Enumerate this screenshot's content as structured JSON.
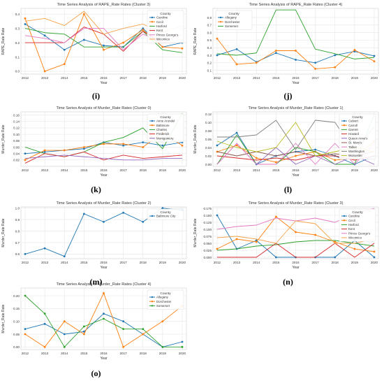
{
  "colors": {
    "grid": "#e6e6e6",
    "frame": "#cfcfcf",
    "text": "#333333",
    "palette": [
      "#1f77b4",
      "#ff7f0e",
      "#2ca02c",
      "#d62728",
      "#9467bd",
      "#8c564b",
      "#e377c2",
      "#7f7f7f",
      "#bcbd22",
      "#17becf"
    ]
  },
  "chart_data": [
    {
      "panel_id": "i",
      "panel_label": "(i)",
      "type": "line",
      "title": "Time Series Analysis of RAPE_Rate Rates (Cluster 3)",
      "xlabel": "Year",
      "ylabel": "RAPE_Rate Rate",
      "x": [
        2012,
        2013,
        2014,
        2015,
        2016,
        2017,
        2018,
        2019,
        2020
      ],
      "ylim": [
        -0.02,
        0.44
      ],
      "yticks": [
        0.0,
        0.1,
        0.2,
        0.3,
        0.4
      ],
      "ytick_labels": [
        "0.0",
        "0.1",
        "0.2",
        "0.3",
        "0.4"
      ],
      "legend_title": "County",
      "legend_position": "top-right",
      "series": [
        {
          "name": "Caroline",
          "color": "#1f77b4",
          "marker": true,
          "values": [
            0.33,
            0.25,
            0.15,
            0.22,
            0.18,
            0.17,
            0.3,
            0.17,
            0.2
          ]
        },
        {
          "name": "Cecil",
          "color": "#ff7f0e",
          "marker": true,
          "values": [
            0.37,
            0.0,
            0.05,
            0.4,
            0.15,
            0.2,
            0.29,
            0.17,
            0.16
          ]
        },
        {
          "name": "Harford",
          "color": "#2ca02c",
          "marker": false,
          "values": [
            0.3,
            0.27,
            0.26,
            0.17,
            0.17,
            0.17,
            0.28,
            0.15,
            0.13
          ]
        },
        {
          "name": "Kent",
          "color": "#d62728",
          "marker": false,
          "values": [
            0.2,
            0.2,
            0.2,
            0.31,
            0.26,
            0.14,
            0.28,
            0.2,
            0.2
          ]
        },
        {
          "name": "Prince George's",
          "color": "#e377c2",
          "marker": false,
          "values": [
            0.25,
            0.23,
            0.2,
            0.3,
            0.3,
            0.15,
            0.26,
            0.2,
            0.26
          ]
        },
        {
          "name": "Wicomico",
          "color": "#f5a34b",
          "marker": false,
          "values": [
            0.35,
            0.37,
            0.32,
            0.42,
            0.26,
            0.3,
            0.33,
            0.27,
            0.32
          ]
        }
      ]
    },
    {
      "panel_id": "j",
      "panel_label": "(j)",
      "type": "line",
      "title": "Time Series Analysis of RAPE_Rate Rates (Cluster 4)",
      "xlabel": "Year",
      "ylabel": "RAPE_Rate Rate",
      "x": [
        2012,
        2013,
        2014,
        2015,
        2016,
        2017,
        2018,
        2019,
        2020
      ],
      "ylim": [
        0.05,
        0.92
      ],
      "yticks": [
        0.1,
        0.2,
        0.3,
        0.4,
        0.5,
        0.6,
        0.7,
        0.8
      ],
      "ytick_labels": [
        "0.1",
        "0.2",
        "0.3",
        "0.4",
        "0.5",
        "0.6",
        "0.7",
        "0.8"
      ],
      "legend_title": "County",
      "legend_position": "top-left",
      "series": [
        {
          "name": "Allegany",
          "color": "#1f77b4",
          "marker": true,
          "values": [
            0.3,
            0.38,
            0.21,
            0.33,
            0.24,
            0.2,
            0.3,
            0.35,
            0.29
          ]
        },
        {
          "name": "Dorchester",
          "color": "#ff7f0e",
          "marker": true,
          "values": [
            0.52,
            0.18,
            0.2,
            0.36,
            0.36,
            0.12,
            0.14,
            0.37,
            0.22
          ]
        },
        {
          "name": "Somerset",
          "color": "#2ca02c",
          "marker": false,
          "values": [
            0.32,
            0.3,
            0.33,
            0.9,
            0.9,
            0.38,
            0.32,
            0.25,
            0.27
          ]
        }
      ]
    },
    {
      "panel_id": "k",
      "panel_label": "(k)",
      "type": "line",
      "title": "Time Series Analysis of Murder_Rate Rates (Cluster 0)",
      "xlabel": "Year",
      "ylabel": "Murder_Rate Rate",
      "x": [
        2012,
        2013,
        2014,
        2015,
        2016,
        2017,
        2018,
        2019,
        2020
      ],
      "ylim": [
        0.0,
        0.17
      ],
      "yticks": [
        0.02,
        0.04,
        0.06,
        0.08,
        0.1,
        0.12,
        0.14,
        0.16
      ],
      "ytick_labels": [
        "0.02",
        "0.04",
        "0.06",
        "0.08",
        "0.10",
        "0.12",
        "0.14",
        "0.16"
      ],
      "legend_title": "County",
      "legend_position": "top-right",
      "series": [
        {
          "name": "Anne Arundel",
          "color": "#1f77b4",
          "marker": true,
          "values": [
            0.04,
            0.045,
            0.05,
            0.055,
            0.075,
            0.065,
            0.075,
            0.065,
            0.075
          ]
        },
        {
          "name": "Baltimore",
          "color": "#ff7f0e",
          "marker": true,
          "values": [
            0.02,
            0.05,
            0.05,
            0.06,
            0.07,
            0.07,
            0.06,
            0.105,
            0.065
          ]
        },
        {
          "name": "Charles",
          "color": "#2ca02c",
          "marker": false,
          "values": [
            0.06,
            0.04,
            0.03,
            0.045,
            0.075,
            0.09,
            0.12,
            0.055,
            0.165
          ]
        },
        {
          "name": "Frederick",
          "color": "#d62728",
          "marker": false,
          "values": [
            0.01,
            0.04,
            0.03,
            0.045,
            0.02,
            0.035,
            0.025,
            0.03,
            0.035
          ]
        },
        {
          "name": "Montgomery",
          "color": "#9467bd",
          "marker": false,
          "values": [
            0.025,
            0.03,
            0.035,
            0.03,
            0.025,
            0.02,
            0.02,
            0.025,
            0.025
          ]
        }
      ]
    },
    {
      "panel_id": "l",
      "panel_label": "(l)",
      "type": "line",
      "title": "Time Series Analysis of Murder_Rate Rates (Cluster 1)",
      "xlabel": "Year",
      "ylabel": "Murder_Rate Rate",
      "x": [
        2012,
        2013,
        2014,
        2015,
        2016,
        2017,
        2018,
        2019,
        2020
      ],
      "ylim": [
        -0.005,
        0.125
      ],
      "yticks": [
        0.0,
        0.02,
        0.04,
        0.06,
        0.08,
        0.1,
        0.12
      ],
      "ytick_labels": [
        "0.00",
        "0.02",
        "0.04",
        "0.06",
        "0.08",
        "0.10",
        "0.12"
      ],
      "legend_title": "County",
      "legend_position": "top-right",
      "series": [
        {
          "name": "Calvert",
          "color": "#1f77b4",
          "marker": true,
          "values": [
            0.045,
            0.075,
            0.0,
            0.02,
            0.03,
            0.035,
            0.02,
            0.0,
            0.02
          ]
        },
        {
          "name": "Carroll",
          "color": "#ff7f0e",
          "marker": true,
          "values": [
            0.03,
            0.045,
            0.015,
            0.005,
            0.02,
            0.03,
            0.01,
            0.015,
            0.055
          ]
        },
        {
          "name": "Garrett",
          "color": "#2ca02c",
          "marker": false,
          "values": [
            0.0,
            0.07,
            0.0,
            0.0,
            0.04,
            0.03,
            0.0,
            0.0,
            0.12
          ]
        },
        {
          "name": "Howard",
          "color": "#d62728",
          "marker": false,
          "values": [
            0.02,
            0.015,
            0.01,
            0.015,
            0.01,
            0.02,
            0.02,
            0.01,
            0.02
          ]
        },
        {
          "name": "Queen Anne's",
          "color": "#9467bd",
          "marker": false,
          "values": [
            0.0,
            0.05,
            0.0,
            0.04,
            0.0,
            0.02,
            0.0,
            0.02,
            0.0
          ]
        },
        {
          "name": "St. Mary's",
          "color": "#8c564b",
          "marker": false,
          "values": [
            0.03,
            0.02,
            0.03,
            0.02,
            0.03,
            0.02,
            0.025,
            0.02,
            0.03
          ]
        },
        {
          "name": "Talbot",
          "color": "#e377c2",
          "marker": false,
          "values": [
            0.0,
            0.05,
            0.0,
            0.0,
            0.05,
            0.0,
            0.05,
            0.0,
            0.05
          ]
        },
        {
          "name": "Washington",
          "color": "#7f7f7f",
          "marker": false,
          "values": [
            0.065,
            0.065,
            0.07,
            0.105,
            0.035,
            0.105,
            0.1,
            0.03,
            0.09
          ]
        },
        {
          "name": "Worcester",
          "color": "#bcbd22",
          "marker": false,
          "values": [
            0.055,
            0.04,
            0.03,
            0.04,
            0.1,
            0.02,
            0.03,
            0.04,
            0.03
          ]
        }
      ]
    },
    {
      "panel_id": "m",
      "panel_label": "(m)",
      "type": "line",
      "title": "Time Series Analysis of Murder_Rate Rates (Cluster 2)",
      "xlabel": "Year",
      "ylabel": "Murder_Rate Rate",
      "x": [
        2012,
        2013,
        2014,
        2015,
        2016,
        2017,
        2018,
        2019,
        2020
      ],
      "ylim": [
        0.56,
        1.01
      ],
      "yticks": [
        0.6,
        0.7,
        0.8,
        0.9,
        1.0
      ],
      "ytick_labels": [
        "0.6",
        "0.7",
        "0.8",
        "0.9",
        "1.0"
      ],
      "legend_title": "County",
      "legend_position": "top-right",
      "series": [
        {
          "name": "Baltimore City",
          "color": "#1f77b4",
          "marker": true,
          "values": [
            0.6,
            0.65,
            0.58,
            0.95,
            0.88,
            0.96,
            0.88,
            1.0,
            0.98
          ]
        }
      ]
    },
    {
      "panel_id": "n",
      "panel_label": "(n)",
      "type": "line",
      "title": "Time Series Analysis of Murder_Rate Rates (Cluster 3)",
      "xlabel": "Year",
      "ylabel": "Murder_Rate Rate",
      "x": [
        2012,
        2013,
        2014,
        2015,
        2016,
        2017,
        2018,
        2019,
        2020
      ],
      "ylim": [
        -0.005,
        0.18
      ],
      "yticks": [
        0.0,
        0.025,
        0.05,
        0.075,
        0.1,
        0.125,
        0.15,
        0.175
      ],
      "ytick_labels": [
        "0.000",
        "0.025",
        "0.050",
        "0.075",
        "0.100",
        "0.125",
        "0.150",
        "0.175"
      ],
      "legend_title": "County",
      "legend_position": "top-right",
      "series": [
        {
          "name": "Caroline",
          "color": "#1f77b4",
          "marker": true,
          "values": [
            0.15,
            0.03,
            0.06,
            0.0,
            0.0,
            0.0,
            0.0,
            0.06,
            0.0
          ]
        },
        {
          "name": "Cecil",
          "color": "#ff7f0e",
          "marker": true,
          "values": [
            0.03,
            0.065,
            0.055,
            0.145,
            0.09,
            0.08,
            0.055,
            0.03,
            0.02
          ]
        },
        {
          "name": "Harford",
          "color": "#2ca02c",
          "marker": false,
          "values": [
            0.025,
            0.03,
            0.04,
            0.045,
            0.055,
            0.06,
            0.06,
            0.05,
            0.04
          ]
        },
        {
          "name": "Kent",
          "color": "#d62728",
          "marker": false,
          "values": [
            0.0,
            0.0,
            0.0,
            0.05,
            0.0,
            0.0,
            0.05,
            0.0,
            0.05
          ]
        },
        {
          "name": "Prince George's",
          "color": "#e377c2",
          "marker": false,
          "values": [
            0.1,
            0.11,
            0.115,
            0.14,
            0.13,
            0.14,
            0.125,
            0.155,
            0.175
          ]
        },
        {
          "name": "Wicomico",
          "color": "#f5a34b",
          "marker": false,
          "values": [
            0.07,
            0.075,
            0.065,
            0.05,
            0.13,
            0.12,
            0.05,
            0.05,
            0.065
          ]
        }
      ]
    },
    {
      "panel_id": "o",
      "panel_label": "(o)",
      "type": "line",
      "title": "Time Series Analysis of Murder_Rate Rates (Cluster 4)",
      "xlabel": "Year",
      "ylabel": "Murder_Rate Rate",
      "x": [
        2012,
        2013,
        2014,
        2015,
        2016,
        2017,
        2018,
        2019,
        2020
      ],
      "ylim": [
        -0.01,
        0.23
      ],
      "yticks": [
        0.0,
        0.05,
        0.1,
        0.15,
        0.2
      ],
      "ytick_labels": [
        "0.00",
        "0.05",
        "0.10",
        "0.15",
        "0.20"
      ],
      "legend_title": "County",
      "legend_position": "top-right",
      "series": [
        {
          "name": "Allegany",
          "color": "#1f77b4",
          "marker": true,
          "values": [
            0.07,
            0.09,
            0.05,
            0.06,
            0.13,
            0.1,
            0.05,
            0.0,
            0.02
          ]
        },
        {
          "name": "Dorchester",
          "color": "#ff7f0e",
          "marker": true,
          "values": [
            0.05,
            0.0,
            0.1,
            0.05,
            0.21,
            0.0,
            0.05,
            0.1,
            0.16
          ]
        },
        {
          "name": "Somerset",
          "color": "#2ca02c",
          "marker": true,
          "values": [
            0.2,
            0.13,
            0.0,
            0.08,
            0.11,
            0.07,
            0.07,
            0.0,
            0.0
          ]
        }
      ]
    }
  ]
}
